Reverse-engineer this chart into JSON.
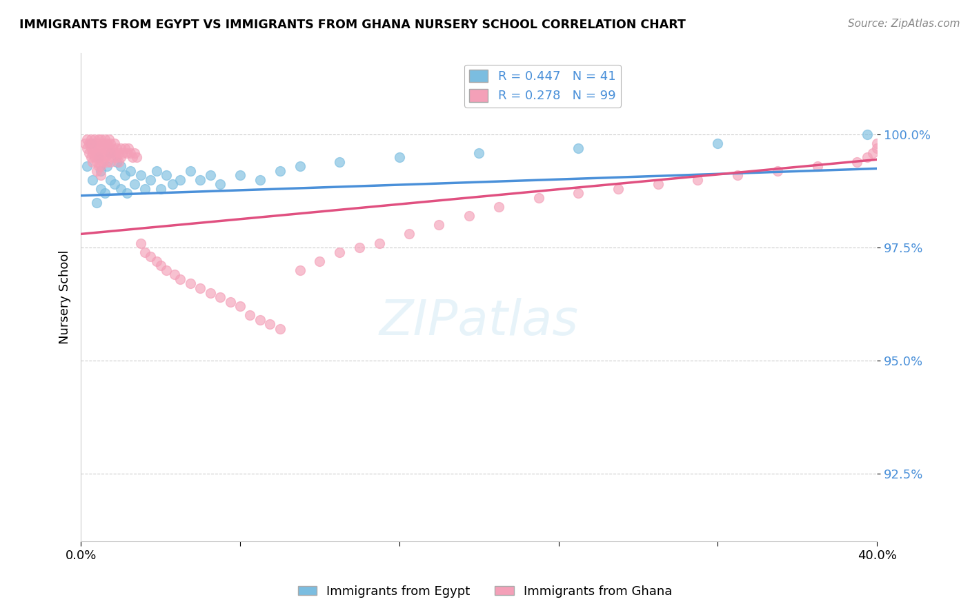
{
  "title": "IMMIGRANTS FROM EGYPT VS IMMIGRANTS FROM GHANA NURSERY SCHOOL CORRELATION CHART",
  "source": "Source: ZipAtlas.com",
  "ylabel": "Nursery School",
  "ytick_labels": [
    "92.5%",
    "95.0%",
    "97.5%",
    "100.0%"
  ],
  "ytick_values": [
    0.925,
    0.95,
    0.975,
    1.0
  ],
  "xmin": 0.0,
  "xmax": 0.4,
  "ymin": 0.91,
  "ymax": 1.018,
  "legend_egypt": "Immigrants from Egypt",
  "legend_ghana": "Immigrants from Ghana",
  "R_egypt": "R = 0.447",
  "N_egypt": "N = 41",
  "R_ghana": "R = 0.278",
  "N_ghana": "N = 99",
  "color_egypt": "#7bbde0",
  "color_ghana": "#f4a0b8",
  "color_egypt_line": "#4a90d9",
  "color_ghana_line": "#e05080",
  "egypt_x": [
    0.003,
    0.005,
    0.006,
    0.008,
    0.009,
    0.01,
    0.01,
    0.012,
    0.013,
    0.015,
    0.015,
    0.017,
    0.018,
    0.02,
    0.02,
    0.022,
    0.023,
    0.025,
    0.027,
    0.03,
    0.032,
    0.035,
    0.038,
    0.04,
    0.043,
    0.046,
    0.05,
    0.055,
    0.06,
    0.065,
    0.07,
    0.08,
    0.09,
    0.1,
    0.11,
    0.13,
    0.16,
    0.2,
    0.25,
    0.32,
    0.395
  ],
  "egypt_y": [
    0.993,
    0.998,
    0.99,
    0.985,
    0.995,
    0.988,
    0.992,
    0.987,
    0.993,
    0.99,
    0.996,
    0.989,
    0.994,
    0.988,
    0.993,
    0.991,
    0.987,
    0.992,
    0.989,
    0.991,
    0.988,
    0.99,
    0.992,
    0.988,
    0.991,
    0.989,
    0.99,
    0.992,
    0.99,
    0.991,
    0.989,
    0.991,
    0.99,
    0.992,
    0.993,
    0.994,
    0.995,
    0.996,
    0.997,
    0.998,
    1.0
  ],
  "ghana_x": [
    0.002,
    0.003,
    0.003,
    0.004,
    0.004,
    0.005,
    0.005,
    0.005,
    0.006,
    0.006,
    0.006,
    0.007,
    0.007,
    0.007,
    0.008,
    0.008,
    0.008,
    0.008,
    0.009,
    0.009,
    0.009,
    0.009,
    0.01,
    0.01,
    0.01,
    0.01,
    0.01,
    0.011,
    0.011,
    0.011,
    0.012,
    0.012,
    0.012,
    0.013,
    0.013,
    0.013,
    0.014,
    0.014,
    0.015,
    0.015,
    0.015,
    0.016,
    0.016,
    0.017,
    0.017,
    0.018,
    0.018,
    0.019,
    0.019,
    0.02,
    0.02,
    0.021,
    0.022,
    0.023,
    0.024,
    0.025,
    0.026,
    0.027,
    0.028,
    0.03,
    0.032,
    0.035,
    0.038,
    0.04,
    0.043,
    0.047,
    0.05,
    0.055,
    0.06,
    0.065,
    0.07,
    0.075,
    0.08,
    0.085,
    0.09,
    0.095,
    0.1,
    0.11,
    0.12,
    0.13,
    0.14,
    0.15,
    0.165,
    0.18,
    0.195,
    0.21,
    0.23,
    0.25,
    0.27,
    0.29,
    0.31,
    0.33,
    0.35,
    0.37,
    0.39,
    0.395,
    0.398,
    0.4,
    0.4
  ],
  "ghana_y": [
    0.998,
    0.999,
    0.997,
    0.998,
    0.996,
    0.999,
    0.997,
    0.995,
    0.998,
    0.996,
    0.994,
    0.999,
    0.997,
    0.995,
    0.998,
    0.996,
    0.994,
    0.992,
    0.999,
    0.997,
    0.995,
    0.993,
    0.999,
    0.997,
    0.995,
    0.993,
    0.991,
    0.998,
    0.996,
    0.994,
    0.999,
    0.997,
    0.995,
    0.998,
    0.996,
    0.994,
    0.999,
    0.997,
    0.998,
    0.996,
    0.994,
    0.997,
    0.995,
    0.998,
    0.996,
    0.997,
    0.995,
    0.996,
    0.994,
    0.997,
    0.995,
    0.996,
    0.997,
    0.996,
    0.997,
    0.996,
    0.995,
    0.996,
    0.995,
    0.976,
    0.974,
    0.973,
    0.972,
    0.971,
    0.97,
    0.969,
    0.968,
    0.967,
    0.966,
    0.965,
    0.964,
    0.963,
    0.962,
    0.96,
    0.959,
    0.958,
    0.957,
    0.97,
    0.972,
    0.974,
    0.975,
    0.976,
    0.978,
    0.98,
    0.982,
    0.984,
    0.986,
    0.987,
    0.988,
    0.989,
    0.99,
    0.991,
    0.992,
    0.993,
    0.994,
    0.995,
    0.996,
    0.997,
    0.998
  ],
  "egypt_trend": [
    0.9865,
    0.9925
  ],
  "ghana_trend": [
    0.978,
    0.9945
  ],
  "watermark": "ZIPatlas"
}
